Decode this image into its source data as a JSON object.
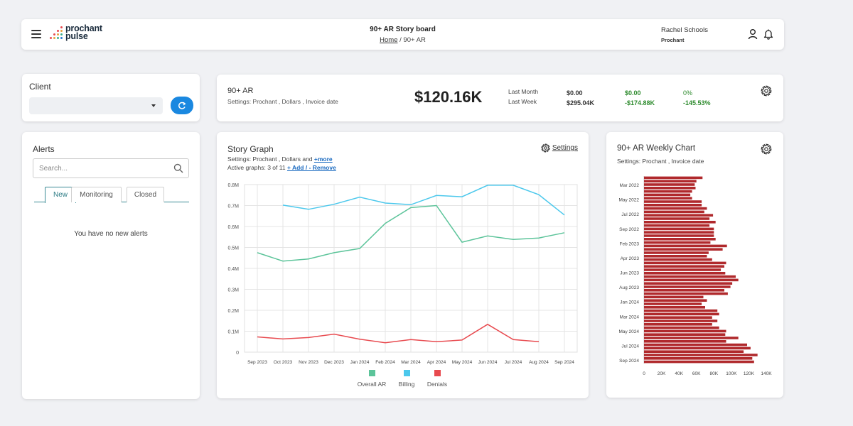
{
  "header": {
    "logo_line1": "prochant",
    "logo_line2": "pulse",
    "title": "90+ AR Story board",
    "breadcrumb_home": "Home",
    "breadcrumb_sep": "/",
    "breadcrumb_current": "90+ AR",
    "user_name": "Rachel Schools",
    "user_org": "Prochant",
    "icons": [
      "menu-icon",
      "user-icon",
      "bell-icon"
    ]
  },
  "client": {
    "label": "Client",
    "selected": "",
    "refresh_icon": "refresh-icon"
  },
  "alerts": {
    "title": "Alerts",
    "search_placeholder": "Search...",
    "tabs": [
      "New",
      "Monitoring",
      "Closed"
    ],
    "active_tab": "New",
    "empty_message": "You have no new alerts"
  },
  "kpi": {
    "title": "90+ AR",
    "settings": "Settings: Prochant , Dollars , Invoice date",
    "value": "$120.16K",
    "last_month_label": "Last Month",
    "last_week_label": "Last Week",
    "last_month_value": "$0.00",
    "last_week_value": "$295.04K",
    "last_month_change": "$0.00",
    "last_week_change": "-$174.88K",
    "last_month_pct": "0%",
    "last_week_pct": "-145.53%",
    "colors": {
      "change": "#2e8b2e"
    }
  },
  "story_graph": {
    "title": "Story Graph",
    "settings_prefix": "Settings: Prochant , Dollars and ",
    "settings_more": "+more",
    "active_prefix": "Active graphs: 3 of 11 ",
    "active_link": "+ Add / - Remove",
    "settings_button": "Settings"
  },
  "weekly": {
    "title": "90+ AR Weekly Chart",
    "settings": "Settings: Prochant , Invoice date"
  },
  "chart_data": [
    {
      "type": "line",
      "x": [
        "Sep 2023",
        "Oct 2023",
        "Nov 2023",
        "Dec 2023",
        "Jan 2024",
        "Feb 2024",
        "Mar 2024",
        "Apr 2024",
        "May 2024",
        "Jun 2024",
        "Jul 2024",
        "Aug 2024",
        "Sep 2024"
      ],
      "ylim": [
        0,
        800000
      ],
      "yticks": [
        "0",
        "0.1M",
        "0.2M",
        "0.3M",
        "0.4M",
        "0.5M",
        "0.6M",
        "0.7M",
        "0.8M"
      ],
      "grid": true,
      "legend": "bottom",
      "series": [
        {
          "name": "Overall AR",
          "color": "#5cc49a",
          "values": [
            475000,
            435000,
            445000,
            475000,
            495000,
            615000,
            690000,
            700000,
            525000,
            555000,
            538000,
            545000,
            570000
          ]
        },
        {
          "name": "Billing",
          "color": "#4cc8ec",
          "values": [
            null,
            702000,
            682000,
            706000,
            740000,
            712000,
            704000,
            748000,
            742000,
            797000,
            797000,
            752000,
            655000
          ]
        },
        {
          "name": "Denials",
          "color": "#e84a4f",
          "values": [
            73000,
            63000,
            70000,
            86000,
            62000,
            45000,
            60000,
            50000,
            58000,
            133000,
            60000,
            50000,
            null
          ]
        }
      ]
    },
    {
      "type": "bar",
      "orientation": "horizontal",
      "color": "#b0292c",
      "xlim": [
        0,
        140000
      ],
      "xticks": [
        "0",
        "20K",
        "40K",
        "60K",
        "80K",
        "100K",
        "120K",
        "140K"
      ],
      "category_labels": [
        "Mar 2022",
        "May 2022",
        "Jul 2022",
        "Sep 2022",
        "Feb 2023",
        "Apr 2023",
        "Jun 2023",
        "Aug 2023",
        "Jan 2024",
        "Mar 2024",
        "May 2024",
        "Jul 2024",
        "Sep 2024"
      ],
      "values": [
        67000,
        60000,
        58000,
        59000,
        55000,
        53000,
        55000,
        66000,
        66000,
        72000,
        69000,
        79000,
        75000,
        82000,
        75000,
        80000,
        80000,
        80000,
        82000,
        76000,
        95000,
        90000,
        74000,
        72000,
        78000,
        94000,
        92000,
        88000,
        93000,
        105000,
        108000,
        101000,
        99000,
        92000,
        96000,
        68000,
        72000,
        66000,
        70000,
        84000,
        86000,
        78000,
        84000,
        78000,
        86000,
        94000,
        93000,
        108000,
        94000,
        118000,
        122000,
        114000,
        130000,
        124000,
        126000
      ]
    }
  ]
}
